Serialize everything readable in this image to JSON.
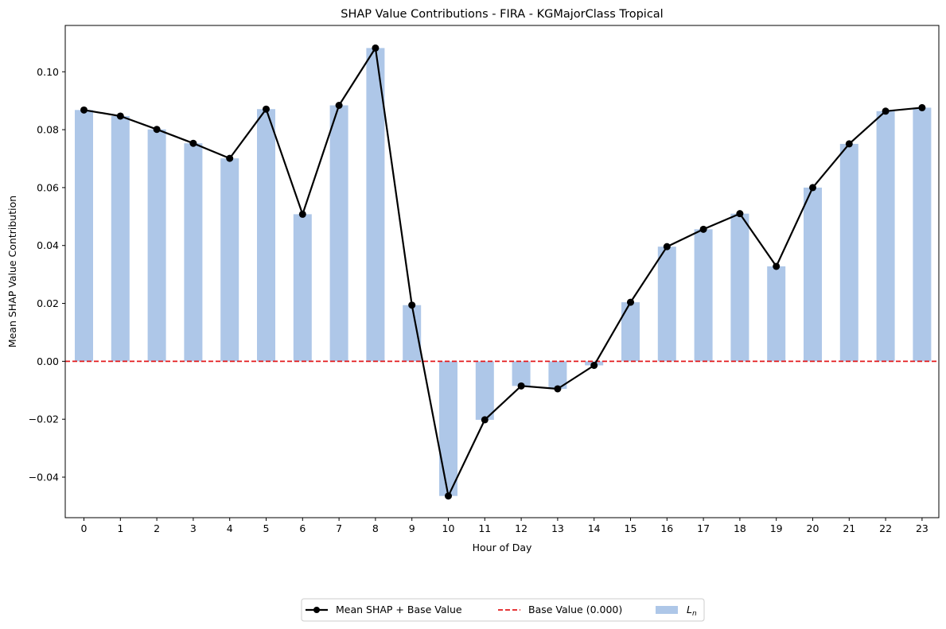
{
  "chart_data": {
    "type": "bar",
    "title": "SHAP Value Contributions - FIRA - KGMajorClass Tropical",
    "xlabel": "Hour of Day",
    "ylabel": "Mean SHAP Value Contribution",
    "categories": [
      "0",
      "1",
      "2",
      "3",
      "4",
      "5",
      "6",
      "7",
      "8",
      "9",
      "10",
      "11",
      "12",
      "13",
      "14",
      "15",
      "16",
      "17",
      "18",
      "19",
      "20",
      "21",
      "22",
      "23"
    ],
    "ylim": [
      -0.054,
      0.116
    ],
    "yticks": [
      -0.04,
      -0.02,
      0.0,
      0.02,
      0.04,
      0.06,
      0.08,
      0.1
    ],
    "ytick_labels": [
      "−0.04",
      "−0.02",
      "0.00",
      "0.02",
      "0.04",
      "0.06",
      "0.08",
      "0.10"
    ],
    "series": [
      {
        "name": "Mean SHAP + Base Value",
        "kind": "line",
        "color": "#000000",
        "values": [
          0.0868,
          0.0847,
          0.0801,
          0.0753,
          0.0701,
          0.0871,
          0.0508,
          0.0884,
          0.1082,
          0.0194,
          -0.0465,
          -0.0202,
          -0.0085,
          -0.0095,
          -0.0014,
          0.0204,
          0.0396,
          0.0456,
          0.051,
          0.0328,
          0.06,
          0.0751,
          0.0864,
          0.0876
        ]
      },
      {
        "name": "Base Value (0.000)",
        "kind": "hline",
        "color": "#e31a1c",
        "value": 0.0
      },
      {
        "name": "L_n",
        "kind": "bar",
        "color": "#aec7e8",
        "values": [
          0.0868,
          0.0847,
          0.0801,
          0.0753,
          0.0701,
          0.0871,
          0.0508,
          0.0884,
          0.1082,
          0.0194,
          -0.0465,
          -0.0202,
          -0.0085,
          -0.0095,
          -0.0014,
          0.0204,
          0.0396,
          0.0456,
          0.051,
          0.0328,
          0.06,
          0.0751,
          0.0864,
          0.0876
        ]
      }
    ],
    "legend": {
      "placement": "bottom-center",
      "entries": [
        "Mean SHAP + Base Value",
        "Base Value (0.000)",
        "L_n"
      ],
      "ln_main": "L",
      "ln_sub": "n"
    },
    "grid": false
  }
}
